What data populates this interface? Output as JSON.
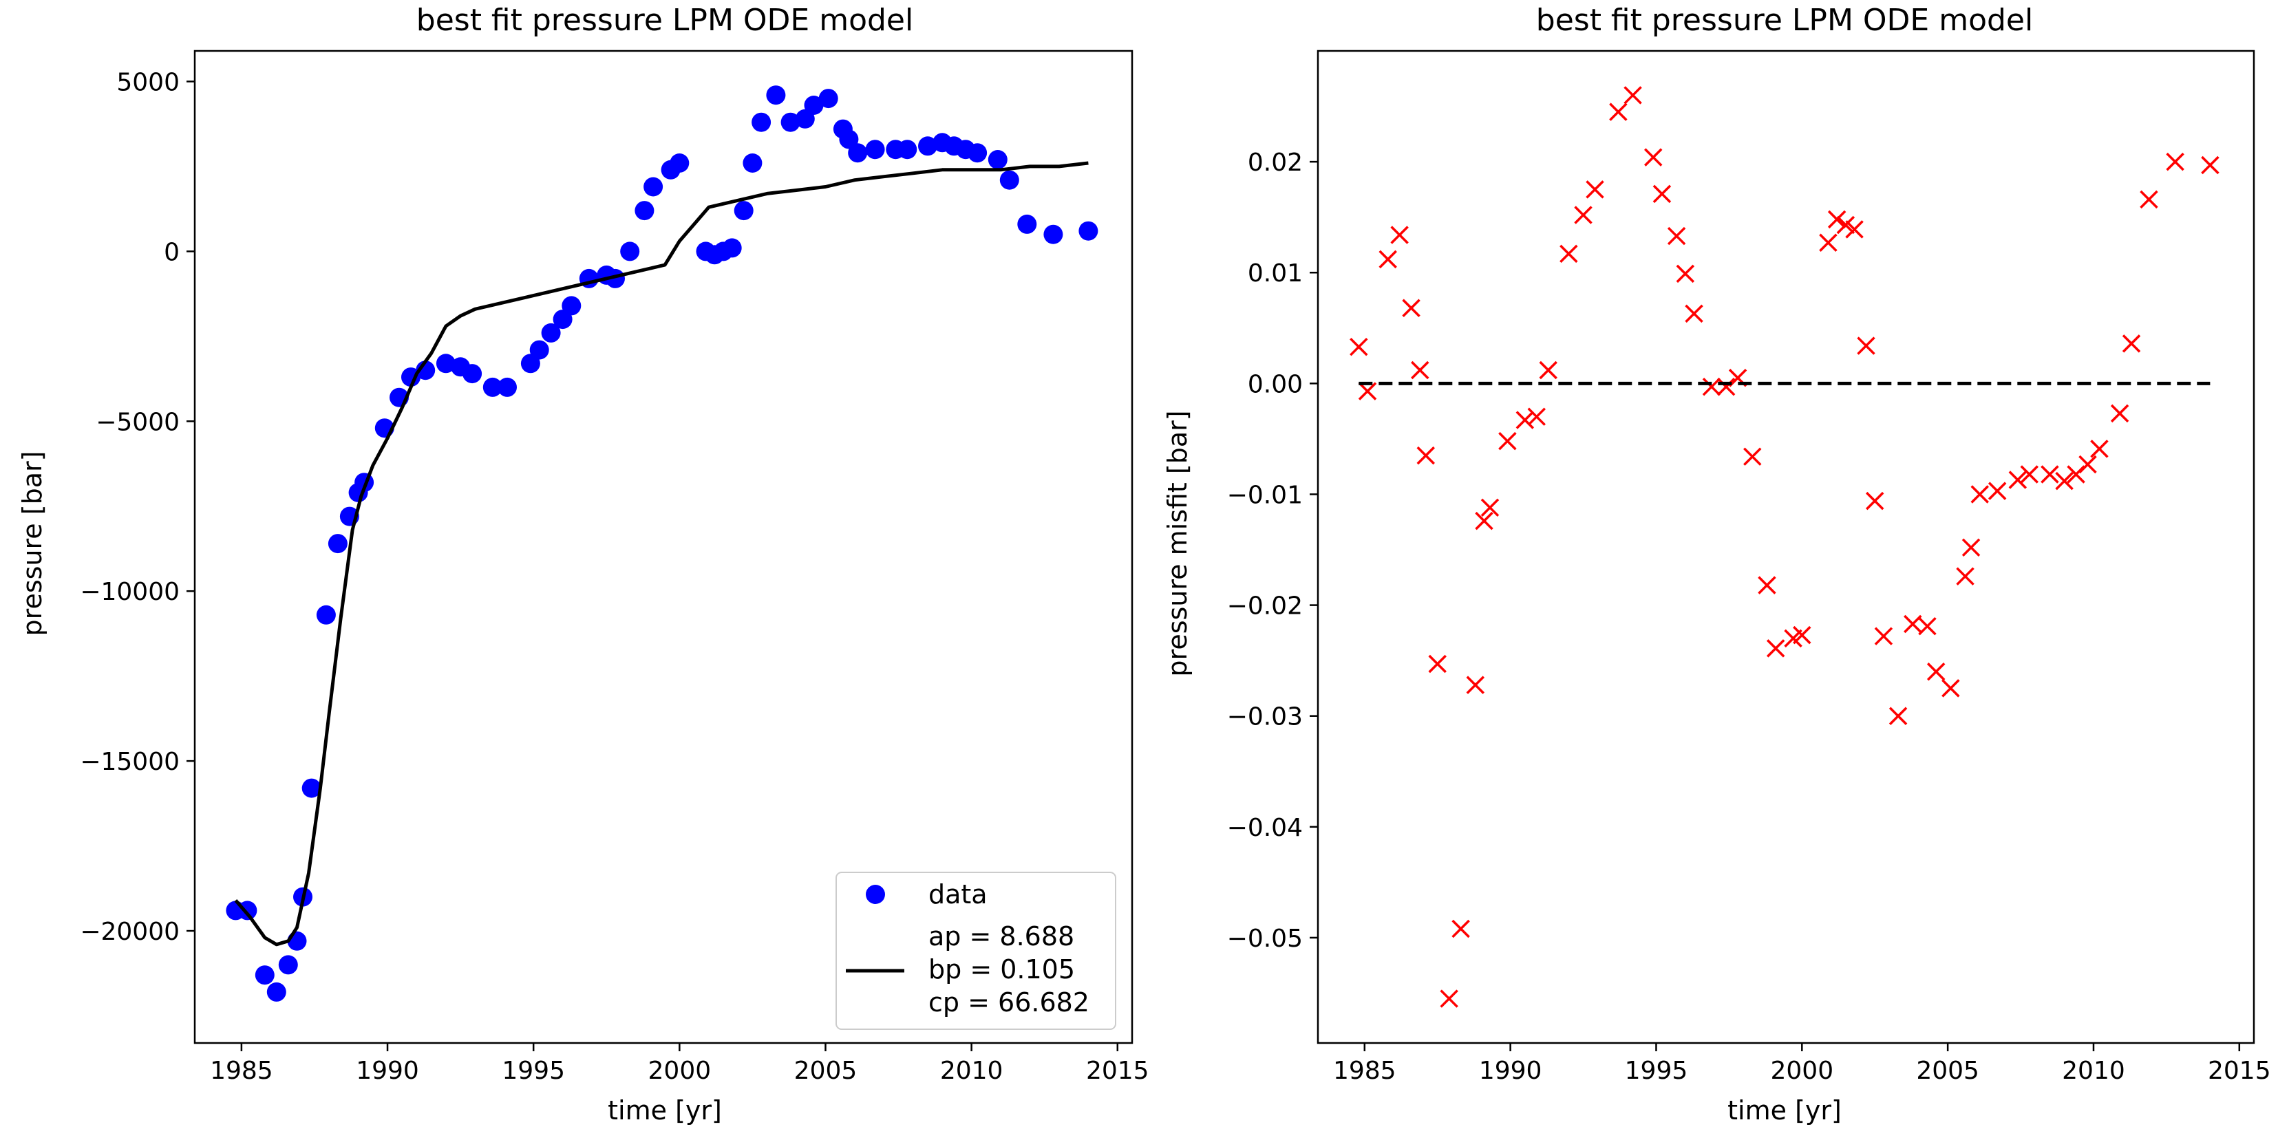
{
  "chart_data": [
    {
      "type": "scatter",
      "title": "best fit pressure LPM ODE model",
      "xlabel": "time [yr]",
      "ylabel": "pressure [bar]",
      "xlim": [
        1983.4,
        2015.5
      ],
      "ylim": [
        -23300,
        5900
      ],
      "xticks": [
        1985,
        1990,
        1995,
        2000,
        2005,
        2010,
        2015
      ],
      "yticks": [
        5000,
        0,
        -5000,
        -10000,
        -15000,
        -20000
      ],
      "xtick_labels": [
        "1985",
        "1990",
        "1995",
        "2000",
        "2005",
        "2010",
        "2015"
      ],
      "ytick_labels": [
        "5000",
        "0",
        "−5000",
        "−10000",
        "−15000",
        "−20000"
      ],
      "legend_position": "lower-right",
      "grid": false,
      "series": [
        {
          "name": "data",
          "kind": "marker",
          "marker": "circle",
          "color": "#0000ff",
          "x": [
            1984.8,
            1985.2,
            1985.8,
            1986.2,
            1986.6,
            1986.9,
            1987.1,
            1987.4,
            1987.9,
            1988.3,
            1988.7,
            1989.0,
            1989.2,
            1989.9,
            1990.4,
            1990.8,
            1991.3,
            1992.0,
            1992.5,
            1992.9,
            1993.6,
            1994.1,
            1994.9,
            1995.2,
            1995.6,
            1996.0,
            1996.3,
            1996.9,
            1997.5,
            1997.8,
            1998.3,
            1998.8,
            1999.1,
            1999.7,
            2000.0,
            2000.9,
            2001.2,
            2001.5,
            2001.8,
            2002.2,
            2002.5,
            2002.8,
            2003.3,
            2003.8,
            2004.3,
            2004.6,
            2005.1,
            2005.6,
            2005.8,
            2006.1,
            2006.7,
            2007.4,
            2007.8,
            2008.5,
            2009.0,
            2009.4,
            2009.8,
            2010.2,
            2010.9,
            2011.3,
            2011.9,
            2012.8,
            2014.0
          ],
          "y": [
            -19400,
            -19400,
            -21300,
            -21800,
            -21000,
            -20300,
            -19000,
            -15800,
            -10700,
            -8600,
            -7800,
            -7100,
            -6800,
            -5200,
            -4300,
            -3700,
            -3500,
            -3300,
            -3400,
            -3600,
            -4000,
            -4000,
            -3300,
            -2900,
            -2400,
            -2000,
            -1600,
            -800,
            -700,
            -800,
            0,
            1200,
            1900,
            2400,
            2600,
            0,
            -100,
            0,
            100,
            1200,
            2600,
            3800,
            4600,
            3800,
            3900,
            4300,
            4500,
            3600,
            3300,
            2900,
            3000,
            3000,
            3000,
            3100,
            3200,
            3100,
            3000,
            2900,
            2700,
            2100,
            800,
            500,
            600
          ]
        },
        {
          "name": "",
          "kind": "line",
          "color": "#000000",
          "x": [
            1984.8,
            1985.3,
            1985.8,
            1986.2,
            1986.6,
            1986.9,
            1987.3,
            1987.7,
            1988.0,
            1988.4,
            1988.8,
            1989.1,
            1989.5,
            1990.0,
            1990.5,
            1991.0,
            1991.5,
            1992.0,
            1992.5,
            1993.0,
            1994.0,
            1995.0,
            1996.0,
            1997.0,
            1998.0,
            1999.0,
            1999.5,
            2000.0,
            2000.5,
            2001.0,
            2002.0,
            2003.0,
            2004.0,
            2005.0,
            2006.0,
            2007.0,
            2008.0,
            2009.0,
            2010.0,
            2011.0,
            2012.0,
            2013.0,
            2014.0
          ],
          "y": [
            -19100,
            -19600,
            -20200,
            -20400,
            -20300,
            -19900,
            -18300,
            -15800,
            -13600,
            -10800,
            -8200,
            -7200,
            -6300,
            -5500,
            -4600,
            -3600,
            -3000,
            -2200,
            -1900,
            -1700,
            -1500,
            -1300,
            -1100,
            -900,
            -700,
            -500,
            -400,
            300,
            800,
            1300,
            1500,
            1700,
            1800,
            1900,
            2100,
            2200,
            2300,
            2400,
            2400,
            2400,
            2500,
            2500,
            2600
          ]
        }
      ],
      "legend": {
        "entries": [
          "data",
          "ap = 8.688",
          "bp = 0.105",
          "cp = 66.682"
        ]
      }
    },
    {
      "type": "scatter",
      "title": "best fit pressure LPM ODE model",
      "xlabel": "time [yr]",
      "ylabel": "pressure misfit [bar]",
      "xlim": [
        1983.4,
        2015.5
      ],
      "ylim": [
        -0.0595,
        0.03
      ],
      "xticks": [
        1985,
        1990,
        1995,
        2000,
        2005,
        2010,
        2015
      ],
      "yticks": [
        0.02,
        0.01,
        0.0,
        -0.01,
        -0.02,
        -0.03,
        -0.04,
        -0.05
      ],
      "xtick_labels": [
        "1985",
        "1990",
        "1995",
        "2000",
        "2005",
        "2010",
        "2015"
      ],
      "ytick_labels": [
        "0.02",
        "0.01",
        "0.00",
        "−0.01",
        "−0.02",
        "−0.03",
        "−0.04",
        "−0.05"
      ],
      "grid": false,
      "series": [
        {
          "name": "",
          "kind": "marker",
          "marker": "x",
          "color": "#ff0000",
          "x": [
            1984.8,
            1985.1,
            1985.8,
            1986.2,
            1986.6,
            1986.9,
            1987.1,
            1987.5,
            1987.9,
            1988.3,
            1988.8,
            1989.1,
            1989.3,
            1989.9,
            1990.5,
            1990.9,
            1991.3,
            1992.0,
            1992.5,
            1992.9,
            1993.7,
            1994.2,
            1994.9,
            1995.2,
            1995.7,
            1996.0,
            1996.3,
            1996.9,
            1997.4,
            1997.8,
            1998.3,
            1998.8,
            1999.1,
            1999.7,
            2000.0,
            2000.9,
            2001.2,
            2001.5,
            2001.8,
            2002.2,
            2002.5,
            2002.8,
            2003.3,
            2003.8,
            2004.3,
            2004.6,
            2005.1,
            2005.6,
            2005.8,
            2006.1,
            2006.7,
            2007.4,
            2007.8,
            2008.5,
            2009.0,
            2009.4,
            2009.8,
            2010.2,
            2010.9,
            2011.3,
            2011.9,
            2012.8,
            2014.0
          ],
          "y": [
            0.0033,
            -0.0007,
            0.0112,
            0.0134,
            0.0068,
            0.0012,
            -0.0065,
            -0.0253,
            -0.0555,
            -0.0492,
            -0.0272,
            -0.0124,
            -0.0112,
            -0.0052,
            -0.0033,
            -0.003,
            0.0012,
            0.0117,
            0.0152,
            0.0175,
            0.0245,
            0.026,
            0.0204,
            0.0171,
            0.0133,
            0.0099,
            0.0063,
            -0.0003,
            -0.0003,
            0.0005,
            -0.0066,
            -0.0182,
            -0.0239,
            -0.023,
            -0.0227,
            0.0127,
            0.0148,
            0.0143,
            0.0139,
            0.0034,
            -0.0106,
            -0.0228,
            -0.03,
            -0.0217,
            -0.0219,
            -0.026,
            -0.0275,
            -0.0174,
            -0.0148,
            -0.01,
            -0.0097,
            -0.0087,
            -0.0082,
            -0.0082,
            -0.0088,
            -0.0082,
            -0.0073,
            -0.0059,
            -0.0027,
            0.0036,
            0.0166,
            0.02,
            0.0197
          ]
        },
        {
          "name": "",
          "kind": "line",
          "style": "dashed",
          "color": "#000000",
          "x": [
            1984.8,
            2014.0
          ],
          "y": [
            0.0,
            0.0
          ]
        }
      ]
    }
  ]
}
